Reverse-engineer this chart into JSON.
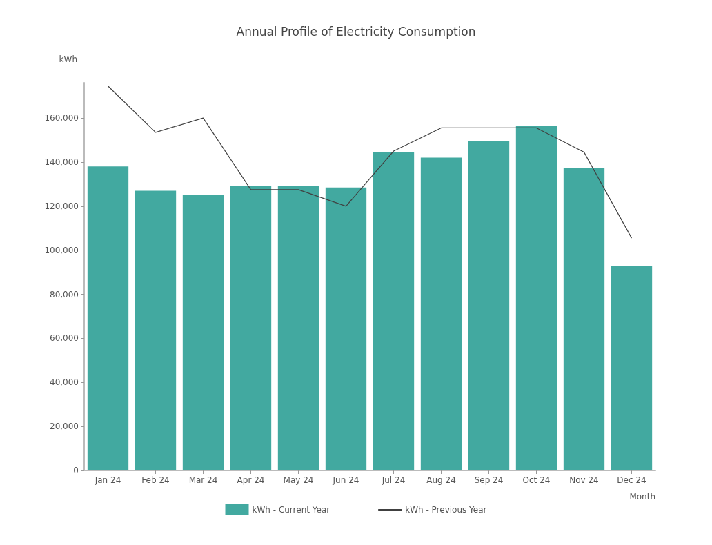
{
  "chart_data": {
    "type": "bar",
    "title": "Annual Profile of Electricity Consumption",
    "ylabel": "kWh",
    "xlabel": "Month",
    "categories": [
      "Jan 24",
      "Feb 24",
      "Mar 24",
      "Apr 24",
      "May 24",
      "Jun 24",
      "Jul 24",
      "Aug 24",
      "Sep 24",
      "Oct 24",
      "Nov 24",
      "Dec 24"
    ],
    "series": [
      {
        "name": "kWh - Current Year",
        "color": "#42a9a0",
        "values": [
          138000,
          127000,
          125000,
          129000,
          129000,
          128500,
          144500,
          142000,
          149500,
          156500,
          137500,
          93000
        ]
      },
      {
        "name": "kWh - Previous Year",
        "type": "line",
        "color": "#404040",
        "values": [
          174500,
          153500,
          160000,
          127500,
          127500,
          120000,
          145000,
          155500,
          155500,
          155500,
          144500,
          105500
        ]
      }
    ],
    "ylim": [
      0,
      176000
    ],
    "yticks": [
      0,
      {
        "value": 20000,
        "label": "20,000"
      },
      {
        "value": 40000,
        "label": "40,000"
      },
      {
        "value": 60000,
        "label": "60,000"
      },
      {
        "value": 80000,
        "label": "80,000"
      },
      {
        "value": 100000,
        "label": "100,000"
      },
      {
        "value": 120000,
        "label": "120,000"
      },
      {
        "value": 140000,
        "label": "140,000"
      },
      {
        "value": 160000,
        "label": "160,000"
      }
    ],
    "grid": false,
    "legend": "bottom",
    "marker": "none",
    "line_style": "solid"
  }
}
